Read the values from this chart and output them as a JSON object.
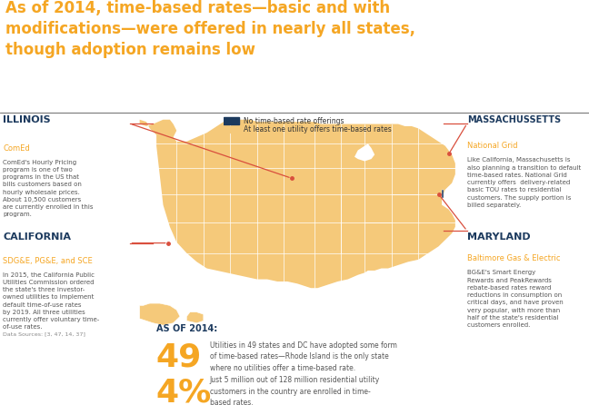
{
  "title": "As of 2014, time-based rates—basic and with\nmodifications—were offered in nearly all states,\nthough adoption remains low",
  "title_color": "#F5A623",
  "background_color": "#FFFFFF",
  "map_default_color": "#F5C97A",
  "map_no_tbr_color": "#1C3A5E",
  "separator_color": "#555555",
  "legend_navy": "#1C3A5E",
  "legend_tan": "#F5C97A",
  "legend_text1": "No time-based rate offerings",
  "legend_text2": "At least one utility offers time-based rates",
  "stat1_num": "49",
  "stat1_text": "Utilities in 49 states and DC have adopted some form\nof time-based rates—Rhode Island is the only state\nwhere no utilities offer a time-based rate.",
  "stat2_num": "4%",
  "stat2_text": "Just 5 million out of 128 million residential utility\ncustomers in the country are enrolled in time-\nbased rates.",
  "as_of_label": "AS OF 2014:",
  "stat_color": "#F5A623",
  "stat_label_color": "#1C3A5E",
  "il_state_label": "ILLINOIS",
  "il_utility_label": "ComEd",
  "il_body": "ComEd's Hourly Pricing\nprogram is one of two\nprograms in the US that\nbills customers based on\nhourly wholesale prices.\nAbout 10,500 customers\nare currently enrolled in this\nprogram.",
  "ca_state_label": "CALIFORNIA",
  "ca_utility_label": "SDG&E, PG&E, and SCE",
  "ca_body": "In 2015, the California Public\nUtilities Commission ordered\nthe state's three investor-\nowned utilities to implement\ndefault time-of-use rates\nby 2019. All three utilities\ncurrently offer voluntary time-\nof-use rates.",
  "ma_state_label": "MASSACHUSSETTS",
  "ma_utility_label": "National Grid",
  "ma_body": "Like California, Massachusetts is\nalso planning a transition to default\ntime-based rates. National Grid\ncurrently offers  delivery-related\nbasic TOU rates to residential\ncustomers. The supply portion is\nbilled separately.",
  "md_state_label": "MARYLAND",
  "md_utility_label": "Baltimore Gas & Electric",
  "md_body": "BG&E's Smart Energy\nRewards and PeakRewards\nrebate-based rates reward\nreductions in consumption on\ncritical days, and have proven\nvery popular, with more than\nhalf of the state's residential\ncustomers enrolled.",
  "data_sources": "Data Sources: [3, 47, 14, 37]",
  "outline_color": "#FFFFFF",
  "line_color": "#D94F3D",
  "ann_state_color": "#1C3A5E",
  "ann_utility_color": "#F5A623",
  "ann_body_color": "#555555"
}
